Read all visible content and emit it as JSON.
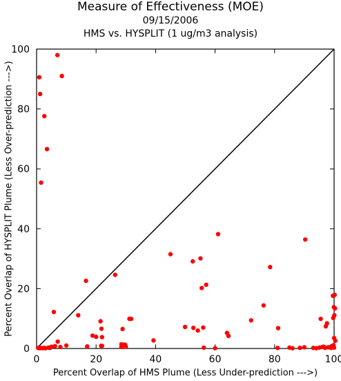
{
  "chart_data": {
    "type": "scatter",
    "title": "Measure of Effectiveness (MOE)",
    "subtitle": "09/15/2006",
    "subtitle2": "HMS vs. HYSPLIT  (1 ug/m3 analysis)",
    "xlabel": "Percent Overlap of HMS Plume (Less Under-prediction --->)",
    "ylabel": "Percent Overlap of HYSPLIT Plume (Less Over-prediction --->)",
    "xlim": [
      0,
      100
    ],
    "ylim": [
      0,
      100
    ],
    "xticks": [
      0,
      20,
      40,
      60,
      80,
      100
    ],
    "yticks": [
      0,
      20,
      40,
      60,
      80,
      100
    ],
    "diagonal_line": true,
    "grid": false,
    "point_color": "#ff0000",
    "x": [
      0.9,
      1.2,
      1.5,
      2.6,
      3.5,
      7.0,
      8.5,
      1.3,
      5.8,
      14.0,
      16.6,
      26.4,
      45.0,
      52.5,
      55.1,
      57.0,
      55.5,
      61.0,
      76.3,
      78.5,
      90.3,
      72.1,
      81.2,
      95.5,
      97.2,
      97.6,
      99.6,
      100.2,
      99.9,
      100.3,
      100.1,
      99.7,
      18.8,
      20.0,
      21.8,
      21.5,
      22.0,
      28.9,
      31.2,
      31.8,
      28.5,
      29.3,
      29.8,
      17.0,
      22.0,
      39.3,
      49.9,
      52.7,
      54.2,
      56.0,
      64.0,
      64.5,
      0.5,
      1.0,
      2.0,
      2.5,
      3.0,
      4.0,
      4.5,
      5.0,
      6.2,
      7.1,
      8.0,
      10.0,
      21.7,
      28.5,
      30.0,
      56.2,
      60.0,
      81.0,
      85.0,
      86.0,
      88.5,
      90.0,
      93.0,
      94.0,
      95.0,
      96.0,
      97.0,
      98.0,
      99.0,
      100.0,
      96.5,
      98.5,
      99.2,
      100.4,
      100.0,
      99.8
    ],
    "y": [
      90.6,
      85.0,
      55.4,
      77.6,
      66.6,
      98.0,
      91.0,
      0.2,
      12.2,
      11.1,
      22.6,
      24.6,
      31.5,
      29.1,
      30.1,
      21.3,
      20.2,
      38.2,
      14.4,
      27.2,
      36.4,
      9.4,
      6.8,
      9.9,
      7.4,
      8.4,
      17.6,
      17.9,
      13.8,
      13.4,
      11.1,
      10.2,
      4.3,
      3.9,
      6.6,
      9.1,
      3.8,
      6.5,
      9.9,
      9.9,
      1.4,
      1.3,
      1.2,
      0.7,
      0.9,
      2.7,
      7.2,
      6.9,
      6.0,
      7.0,
      5.2,
      4.2,
      0.2,
      0.1,
      0.1,
      0.2,
      0.1,
      0.3,
      0.2,
      0.6,
      0.8,
      2.3,
      0.5,
      1.0,
      0.9,
      0.5,
      0.6,
      0.3,
      0.1,
      0.2,
      0.3,
      0.1,
      0.2,
      0.4,
      0.2,
      0.1,
      0.3,
      0.5,
      0.2,
      0.4,
      0.2,
      0.3,
      0.6,
      0.4,
      0.8,
      2.6,
      3.5,
      1.1
    ]
  }
}
